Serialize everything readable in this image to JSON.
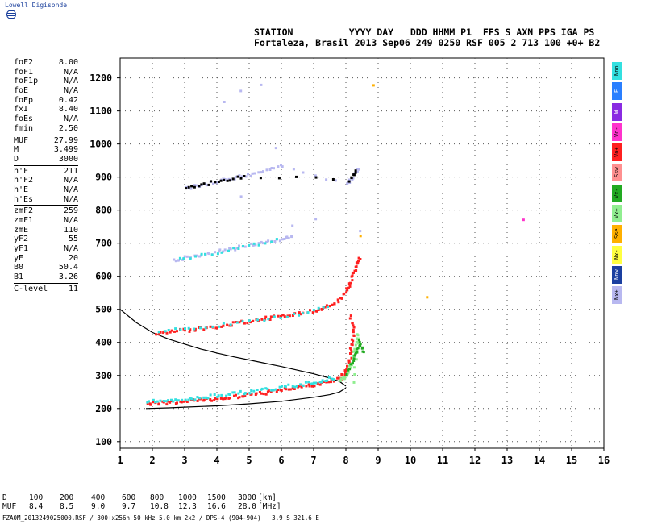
{
  "brand": "Lowell Digisonde",
  "header": {
    "line1": "STATION          YYYY DAY   DDD HHMM P1  FFS S AXN PPS IGA PS",
    "line2": "Fortaleza, Brasil 2013 Sep06 249 0250 RSF 005 2 713 100 +0+ B2"
  },
  "params": [
    [
      [
        "foF2",
        "8.00"
      ],
      [
        "foF1",
        "N/A"
      ],
      [
        "foF1p",
        "N/A"
      ],
      [
        "foE",
        "N/A"
      ],
      [
        "foEp",
        "0.42"
      ],
      [
        "fxI",
        "8.40"
      ],
      [
        "foEs",
        "N/A"
      ],
      [
        "fmin",
        "2.50"
      ]
    ],
    [
      [
        "MUF",
        "27.99"
      ],
      [
        "M",
        "3.499"
      ],
      [
        "D",
        "3000"
      ]
    ],
    [
      [
        "h'F",
        "211"
      ],
      [
        "h'F2",
        "N/A"
      ],
      [
        "h'E",
        "N/A"
      ],
      [
        "h'Es",
        "N/A"
      ]
    ],
    [
      [
        "zmF2",
        "259"
      ],
      [
        "zmF1",
        "N/A"
      ],
      [
        "zmE",
        "110"
      ],
      [
        "yF2",
        "55"
      ],
      [
        "yF1",
        "N/A"
      ],
      [
        "yE",
        "20"
      ],
      [
        "B0",
        "50.4"
      ],
      [
        "B1",
        "3.26"
      ]
    ],
    [
      [
        "C-level",
        "11"
      ]
    ]
  ],
  "legend": [
    {
      "label": "Nno",
      "color": "#33e0e0"
    },
    {
      "label": "E",
      "color": "#2a7fff"
    },
    {
      "label": "W",
      "color": "#8a2be2"
    },
    {
      "label": "Vo-",
      "color": "#ff33cc"
    },
    {
      "label": "Vo+",
      "color": "#ff2020"
    },
    {
      "label": "Ssw",
      "color": "#ff9090"
    },
    {
      "label": "Vx-",
      "color": "#22aa22"
    },
    {
      "label": "Vx+",
      "color": "#90ee90"
    },
    {
      "label": "Sse",
      "color": "#ffb000"
    },
    {
      "label": "Nx-",
      "color": "#ffff40"
    },
    {
      "label": "Nnw",
      "color": "#1a3fa0"
    },
    {
      "label": "Nx+",
      "color": "#b8b8f0"
    }
  ],
  "muf_table": {
    "d_label": "D",
    "d_values": [
      "100",
      "200",
      "400",
      "600",
      "800",
      "1000",
      "1500",
      "3000"
    ],
    "d_unit": "[km]",
    "muf_label": "MUF",
    "muf_values": [
      "8.4",
      "8.5",
      "9.0",
      "9.7",
      "10.8",
      "12.3",
      "16.6",
      "28.0"
    ],
    "muf_unit": "[MHz]"
  },
  "footer": "FZA0M_2013249025000.RSF / 300+x256h 50 kHz 5.0 km 2x2 / DPS-4 (904-904)   3.9 S 321.6 E",
  "chart_data": {
    "type": "scatter",
    "x_ticks": [
      "1",
      "2",
      "3",
      "4",
      "5",
      "6",
      "7",
      "8",
      "9",
      "10",
      "11",
      "12",
      "13",
      "14",
      "15",
      "16"
    ],
    "y_ticks": [
      "100",
      "200",
      "300",
      "400",
      "500",
      "600",
      "700",
      "800",
      "900",
      "1000",
      "1100",
      "1200"
    ],
    "xlim": [
      1,
      16
    ],
    "ylim": [
      80,
      1260
    ],
    "grid": true,
    "profile_upper": [
      [
        1.0,
        500
      ],
      [
        1.5,
        460
      ],
      [
        2.0,
        430
      ],
      [
        2.5,
        410
      ],
      [
        3.0,
        395
      ],
      [
        3.5,
        380
      ],
      [
        4.0,
        368
      ],
      [
        4.5,
        357
      ],
      [
        5.0,
        347
      ],
      [
        5.5,
        337
      ],
      [
        6.0,
        327
      ],
      [
        6.5,
        316
      ],
      [
        7.0,
        305
      ],
      [
        7.5,
        292
      ],
      [
        7.8,
        282
      ],
      [
        8.0,
        268
      ]
    ],
    "profile_lower": [
      [
        1.8,
        200
      ],
      [
        2.5,
        202
      ],
      [
        3.0,
        204
      ],
      [
        4.0,
        208
      ],
      [
        5.0,
        214
      ],
      [
        6.0,
        222
      ],
      [
        7.0,
        234
      ],
      [
        7.5,
        242
      ],
      [
        7.8,
        250
      ],
      [
        8.0,
        262
      ]
    ],
    "traces": [
      {
        "name": "F1",
        "color": "#ff2020",
        "points": [
          [
            1.8,
            218
          ],
          [
            2.2,
            220
          ],
          [
            2.6,
            222
          ],
          [
            3.0,
            225
          ],
          [
            3.4,
            228
          ],
          [
            3.8,
            231
          ],
          [
            4.2,
            235
          ],
          [
            4.6,
            240
          ],
          [
            5.0,
            245
          ],
          [
            5.4,
            250
          ],
          [
            5.8,
            256
          ],
          [
            6.2,
            262
          ],
          [
            6.6,
            268
          ],
          [
            7.0,
            275
          ],
          [
            7.4,
            283
          ],
          [
            7.8,
            295
          ],
          [
            8.0,
            320
          ],
          [
            8.1,
            360
          ],
          [
            8.15,
            400
          ],
          [
            8.2,
            440
          ],
          [
            8.1,
            480
          ]
        ]
      },
      {
        "name": "F1o",
        "color": "#33e0e0",
        "points": [
          [
            1.8,
            224
          ],
          [
            2.3,
            226
          ],
          [
            2.8,
            230
          ],
          [
            3.3,
            235
          ],
          [
            3.8,
            240
          ],
          [
            4.3,
            246
          ],
          [
            4.8,
            252
          ],
          [
            5.3,
            258
          ],
          [
            5.8,
            265
          ],
          [
            6.3,
            272
          ],
          [
            6.8,
            280
          ],
          [
            7.2,
            288
          ],
          [
            7.6,
            296
          ]
        ]
      },
      {
        "name": "F1x",
        "color": "#90ee90",
        "points": [
          [
            7.8,
            290
          ],
          [
            8.0,
            300
          ],
          [
            8.1,
            330
          ],
          [
            8.2,
            360
          ],
          [
            8.3,
            400
          ],
          [
            8.35,
            430
          ],
          [
            8.2,
            280
          ]
        ]
      },
      {
        "name": "F1g",
        "color": "#22aa22",
        "points": [
          [
            8.0,
            310
          ],
          [
            8.2,
            345
          ],
          [
            8.3,
            375
          ],
          [
            8.4,
            410
          ],
          [
            8.5,
            370
          ]
        ]
      },
      {
        "name": "F2",
        "color": "#ff2020",
        "points": [
          [
            2.1,
            432
          ],
          [
            2.5,
            436
          ],
          [
            3.0,
            440
          ],
          [
            3.5,
            446
          ],
          [
            4.0,
            452
          ],
          [
            4.5,
            460
          ],
          [
            5.0,
            468
          ],
          [
            5.5,
            476
          ],
          [
            6.0,
            484
          ],
          [
            6.5,
            492
          ],
          [
            7.0,
            500
          ],
          [
            7.3,
            506
          ],
          [
            7.6,
            520
          ],
          [
            7.9,
            545
          ],
          [
            8.05,
            575
          ],
          [
            8.2,
            610
          ],
          [
            8.3,
            640
          ],
          [
            8.4,
            660
          ]
        ]
      },
      {
        "name": "F2o",
        "color": "#33e0e0",
        "points": [
          [
            2.2,
            440
          ],
          [
            3.1,
            445
          ],
          [
            4.2,
            457
          ],
          [
            5.4,
            472
          ],
          [
            6.5,
            490
          ],
          [
            7.4,
            512
          ]
        ]
      },
      {
        "name": "F3",
        "color": "#b8b8f0",
        "points": [
          [
            2.6,
            650
          ],
          [
            3.0,
            660
          ],
          [
            3.5,
            668
          ],
          [
            4.0,
            678
          ],
          [
            4.5,
            688
          ],
          [
            5.0,
            698
          ],
          [
            5.5,
            706
          ],
          [
            6.0,
            716
          ],
          [
            6.3,
            722
          ]
        ]
      },
      {
        "name": "F3o",
        "color": "#33e0e0",
        "points": [
          [
            2.8,
            655
          ],
          [
            3.8,
            672
          ],
          [
            4.8,
            692
          ],
          [
            5.8,
            712
          ]
        ]
      },
      {
        "name": "F4",
        "color": "#b8b8f0",
        "points": [
          [
            3.0,
            870
          ],
          [
            3.5,
            880
          ],
          [
            4.0,
            890
          ],
          [
            4.5,
            900
          ],
          [
            5.0,
            912
          ],
          [
            5.5,
            922
          ],
          [
            6.0,
            940
          ],
          [
            8.0,
            880
          ],
          [
            8.2,
            910
          ],
          [
            8.35,
            930
          ]
        ]
      },
      {
        "name": "F4k",
        "color": "#000000",
        "points": [
          [
            3.0,
            868
          ],
          [
            3.6,
            882
          ],
          [
            4.2,
            894
          ],
          [
            4.8,
            906
          ],
          [
            8.1,
            895
          ],
          [
            8.3,
            925
          ]
        ]
      },
      {
        "name": "scatter",
        "color": "#b8b8f0",
        "points": [
          [
            4.2,
            1130
          ],
          [
            4.7,
            1160
          ],
          [
            5.3,
            1180
          ],
          [
            5.8,
            990
          ],
          [
            6.3,
            760
          ],
          [
            7.0,
            780
          ],
          [
            4.7,
            840
          ],
          [
            8.4,
            740
          ]
        ]
      },
      {
        "name": "misc",
        "color": "#ffb000",
        "points": [
          [
            10.5,
            540
          ],
          [
            8.4,
            730
          ],
          [
            8.8,
            1180
          ]
        ]
      },
      {
        "name": "mag",
        "color": "#ff33cc",
        "points": [
          [
            13.5,
            775
          ]
        ]
      }
    ]
  }
}
